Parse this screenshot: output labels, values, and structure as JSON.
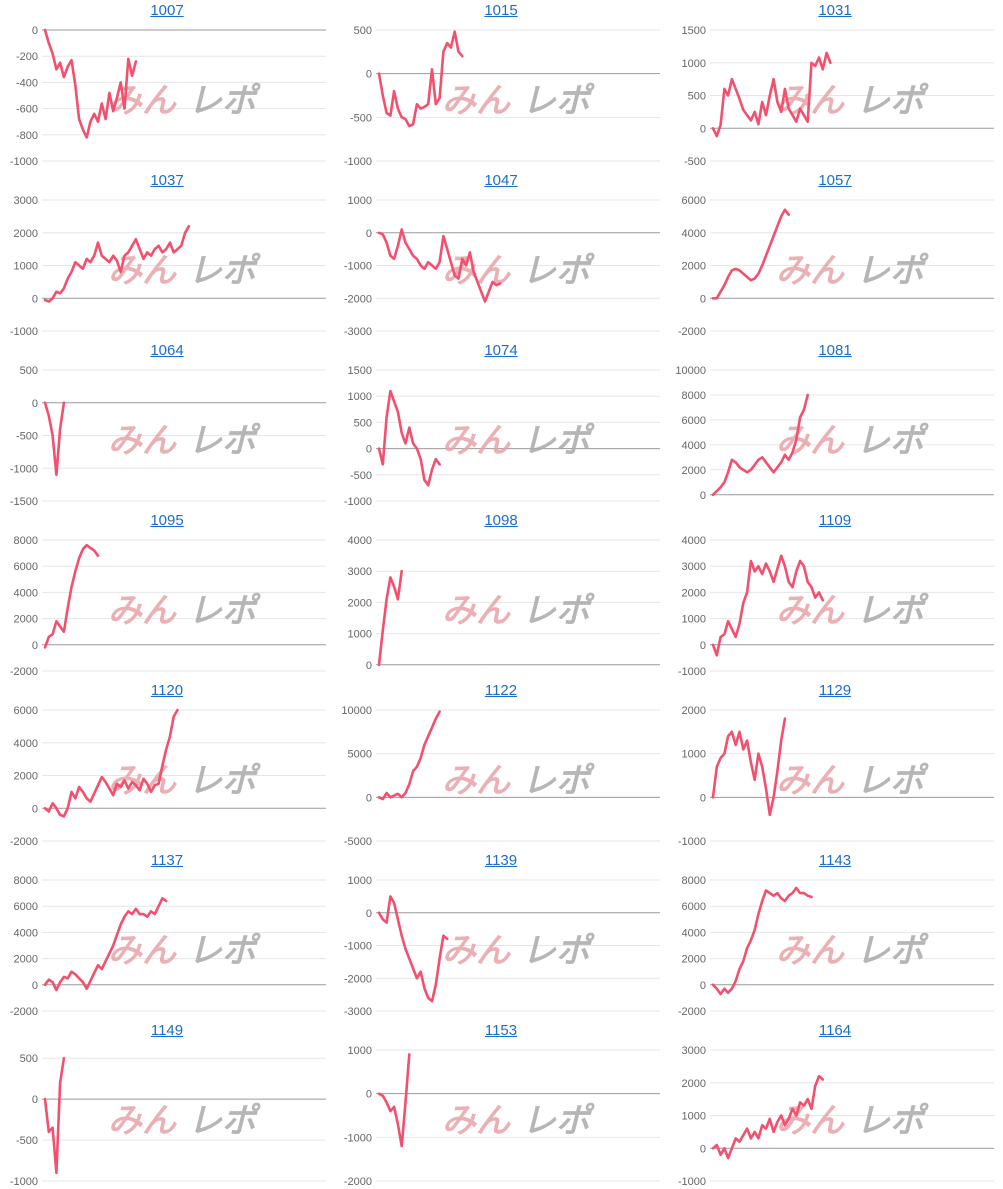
{
  "colors": {
    "line": "#f2506e",
    "grid": "#e6e6e6",
    "link": "#1a6fc9",
    "watermark_left": "#e8a3a8",
    "watermark_right": "#aaaaaa"
  },
  "watermark": {
    "left": "みん",
    "right": "レポ"
  },
  "chart_data": [
    {
      "type": "line",
      "title": "1007",
      "yticks": [
        0,
        -200,
        -400,
        -600,
        -800,
        -1000
      ],
      "ylim": [
        -1000,
        0
      ],
      "y": [
        0,
        -100,
        -180,
        -300,
        -250,
        -360,
        -280,
        -230,
        -420,
        -680,
        -760,
        -820,
        -700,
        -640,
        -700,
        -560,
        -680,
        -480,
        -620,
        -520,
        -400,
        -600,
        -220,
        -350,
        -240
      ]
    },
    {
      "type": "line",
      "title": "1015",
      "yticks": [
        500,
        0,
        -500,
        -1000
      ],
      "ylim": [
        -1000,
        500
      ],
      "y": [
        0,
        -250,
        -450,
        -480,
        -200,
        -400,
        -500,
        -520,
        -600,
        -580,
        -350,
        -400,
        -380,
        -350,
        50,
        -350,
        -280,
        250,
        350,
        300,
        480,
        250,
        200
      ]
    },
    {
      "type": "line",
      "title": "1031",
      "yticks": [
        1500,
        1000,
        500,
        0,
        -500
      ],
      "ylim": [
        -500,
        1500
      ],
      "y": [
        0,
        -120,
        50,
        600,
        500,
        750,
        600,
        450,
        280,
        200,
        120,
        250,
        60,
        400,
        200,
        500,
        750,
        400,
        250,
        600,
        300,
        200,
        100,
        300,
        200,
        100,
        1000,
        950,
        1080,
        900,
        1150,
        1000
      ]
    },
    {
      "type": "line",
      "title": "1037",
      "yticks": [
        3000,
        2000,
        1000,
        0,
        -1000
      ],
      "ylim": [
        -1000,
        3000
      ],
      "y": [
        -50,
        -100,
        0,
        200,
        150,
        300,
        600,
        800,
        1100,
        1000,
        900,
        1200,
        1100,
        1300,
        1700,
        1300,
        1200,
        1100,
        1300,
        1150,
        800,
        1300,
        1400,
        1600,
        1800,
        1500,
        1200,
        1400,
        1300,
        1500,
        1600,
        1400,
        1500,
        1700,
        1400,
        1500,
        1600,
        2000,
        2200
      ]
    },
    {
      "type": "line",
      "title": "1047",
      "yticks": [
        1000,
        0,
        -1000,
        -2000,
        -3000
      ],
      "ylim": [
        -3000,
        1000
      ],
      "y": [
        0,
        -50,
        -300,
        -700,
        -800,
        -400,
        100,
        -300,
        -500,
        -700,
        -800,
        -1000,
        -1100,
        -900,
        -1000,
        -1100,
        -900,
        -100,
        -500,
        -900,
        -1300,
        -1400,
        -800,
        -1000,
        -600,
        -1200,
        -1500,
        -1800,
        -2100,
        -1800,
        -1500,
        -1600,
        -1550
      ]
    },
    {
      "type": "line",
      "title": "1057",
      "yticks": [
        6000,
        4000,
        2000,
        0,
        -2000
      ],
      "ylim": [
        -2000,
        6000
      ],
      "y": [
        0,
        0,
        400,
        800,
        1300,
        1700,
        1800,
        1700,
        1500,
        1300,
        1100,
        1200,
        1500,
        2000,
        2600,
        3200,
        3800,
        4400,
        5000,
        5400,
        5100
      ]
    },
    {
      "type": "line",
      "title": "1064",
      "yticks": [
        500,
        0,
        -500,
        -1000,
        -1500
      ],
      "ylim": [
        -1500,
        500
      ],
      "y": [
        0,
        -200,
        -500,
        -1100,
        -400,
        0
      ]
    },
    {
      "type": "line",
      "title": "1074",
      "yticks": [
        1500,
        1000,
        500,
        0,
        -500,
        -1000
      ],
      "ylim": [
        -1000,
        1500
      ],
      "y": [
        0,
        -300,
        600,
        1100,
        900,
        700,
        300,
        100,
        400,
        100,
        0,
        -200,
        -600,
        -700,
        -400,
        -200,
        -300
      ]
    },
    {
      "type": "line",
      "title": "1081",
      "yticks": [
        10000,
        8000,
        6000,
        4000,
        2000,
        0
      ],
      "ylim": [
        -500,
        10000
      ],
      "y": [
        0,
        300,
        600,
        1000,
        1800,
        2800,
        2600,
        2200,
        2000,
        1800,
        2000,
        2400,
        2800,
        3000,
        2600,
        2200,
        1800,
        2200,
        2600,
        3200,
        2800,
        3400,
        4400,
        6200,
        6800,
        8000
      ]
    },
    {
      "type": "line",
      "title": "1095",
      "yticks": [
        8000,
        6000,
        4000,
        2000,
        0,
        -2000
      ],
      "ylim": [
        -2000,
        8000
      ],
      "y": [
        -200,
        600,
        800,
        1800,
        1400,
        1000,
        2800,
        4400,
        5600,
        6600,
        7300,
        7600,
        7400,
        7200,
        6800
      ]
    },
    {
      "type": "line",
      "title": "1098",
      "yticks": [
        4000,
        3000,
        2000,
        1000,
        0
      ],
      "ylim": [
        -200,
        4000
      ],
      "y": [
        0,
        1100,
        2100,
        2800,
        2500,
        2100,
        3000
      ]
    },
    {
      "type": "line",
      "title": "1109",
      "yticks": [
        4000,
        3000,
        2000,
        1000,
        0,
        -1000
      ],
      "ylim": [
        -1000,
        4000
      ],
      "y": [
        0,
        -400,
        300,
        400,
        900,
        600,
        300,
        800,
        1600,
        2000,
        3200,
        2800,
        3000,
        2700,
        3100,
        2800,
        2400,
        2900,
        3400,
        3000,
        2400,
        2200,
        2800,
        3200,
        3000,
        2400,
        2200,
        1800,
        2000,
        1700
      ]
    },
    {
      "type": "line",
      "title": "1120",
      "yticks": [
        6000,
        4000,
        2000,
        0,
        -2000
      ],
      "ylim": [
        -2000,
        6000
      ],
      "y": [
        0,
        -200,
        300,
        0,
        -400,
        -500,
        0,
        1000,
        600,
        1300,
        1000,
        600,
        400,
        900,
        1400,
        1900,
        1600,
        1200,
        800,
        1500,
        1300,
        1700,
        1200,
        1600,
        1400,
        1100,
        1800,
        1500,
        1000,
        1400,
        1500,
        2600,
        3600,
        4400,
        5600,
        6000
      ]
    },
    {
      "type": "line",
      "title": "1122",
      "yticks": [
        10000,
        5000,
        0,
        -5000
      ],
      "ylim": [
        -5000,
        10000
      ],
      "y": [
        0,
        -200,
        500,
        0,
        200,
        400,
        0,
        500,
        1500,
        3000,
        3500,
        4500,
        6000,
        7000,
        8000,
        9000,
        9800
      ]
    },
    {
      "type": "line",
      "title": "1129",
      "yticks": [
        2000,
        1000,
        0,
        -1000
      ],
      "ylim": [
        -1000,
        2000
      ],
      "y": [
        0,
        700,
        900,
        1000,
        1400,
        1500,
        1200,
        1500,
        1100,
        1300,
        800,
        400,
        1000,
        700,
        200,
        -400,
        0,
        600,
        1300,
        1800
      ]
    },
    {
      "type": "line",
      "title": "1137",
      "yticks": [
        8000,
        6000,
        4000,
        2000,
        0,
        -2000
      ],
      "ylim": [
        -2000,
        8000
      ],
      "y": [
        0,
        400,
        200,
        -400,
        200,
        600,
        500,
        1000,
        800,
        500,
        200,
        -300,
        300,
        900,
        1500,
        1200,
        1800,
        2400,
        3000,
        3800,
        4600,
        5200,
        5600,
        5400,
        5800,
        5400,
        5400,
        5200,
        5600,
        5400,
        6000,
        6600,
        6400
      ]
    },
    {
      "type": "line",
      "title": "1139",
      "yticks": [
        1000,
        0,
        -1000,
        -2000,
        -3000
      ],
      "ylim": [
        -3000,
        1000
      ],
      "y": [
        0,
        -200,
        -300,
        500,
        300,
        -200,
        -700,
        -1100,
        -1400,
        -1700,
        -2000,
        -1800,
        -2300,
        -2600,
        -2700,
        -2200,
        -1400,
        -700,
        -800
      ]
    },
    {
      "type": "line",
      "title": "1143",
      "yticks": [
        8000,
        6000,
        4000,
        2000,
        0,
        -2000
      ],
      "ylim": [
        -2000,
        8000
      ],
      "y": [
        0,
        -300,
        -700,
        -300,
        -600,
        -300,
        300,
        1200,
        1800,
        2800,
        3400,
        4200,
        5400,
        6400,
        7200,
        7000,
        6800,
        7000,
        6600,
        6400,
        6800,
        7000,
        7400,
        7000,
        7000,
        6800,
        6700
      ]
    },
    {
      "type": "line",
      "title": "1149",
      "yticks": [
        500,
        0,
        -500,
        -1000
      ],
      "ylim": [
        -1000,
        600
      ],
      "y": [
        0,
        -400,
        -350,
        -900,
        200,
        500
      ]
    },
    {
      "type": "line",
      "title": "1153",
      "yticks": [
        1000,
        0,
        -1000,
        -2000
      ],
      "ylim": [
        -2000,
        1000
      ],
      "y": [
        0,
        -50,
        -200,
        -400,
        -300,
        -700,
        -1200,
        -200,
        900
      ]
    },
    {
      "type": "line",
      "title": "1164",
      "yticks": [
        3000,
        2000,
        1000,
        0,
        -1000
      ],
      "ylim": [
        -1000,
        3000
      ],
      "y": [
        0,
        100,
        -200,
        0,
        -300,
        0,
        300,
        200,
        400,
        600,
        300,
        500,
        300,
        700,
        600,
        900,
        500,
        800,
        1000,
        700,
        900,
        1200,
        1000,
        1400,
        1300,
        1500,
        1200,
        1900,
        2200,
        2100
      ]
    }
  ]
}
